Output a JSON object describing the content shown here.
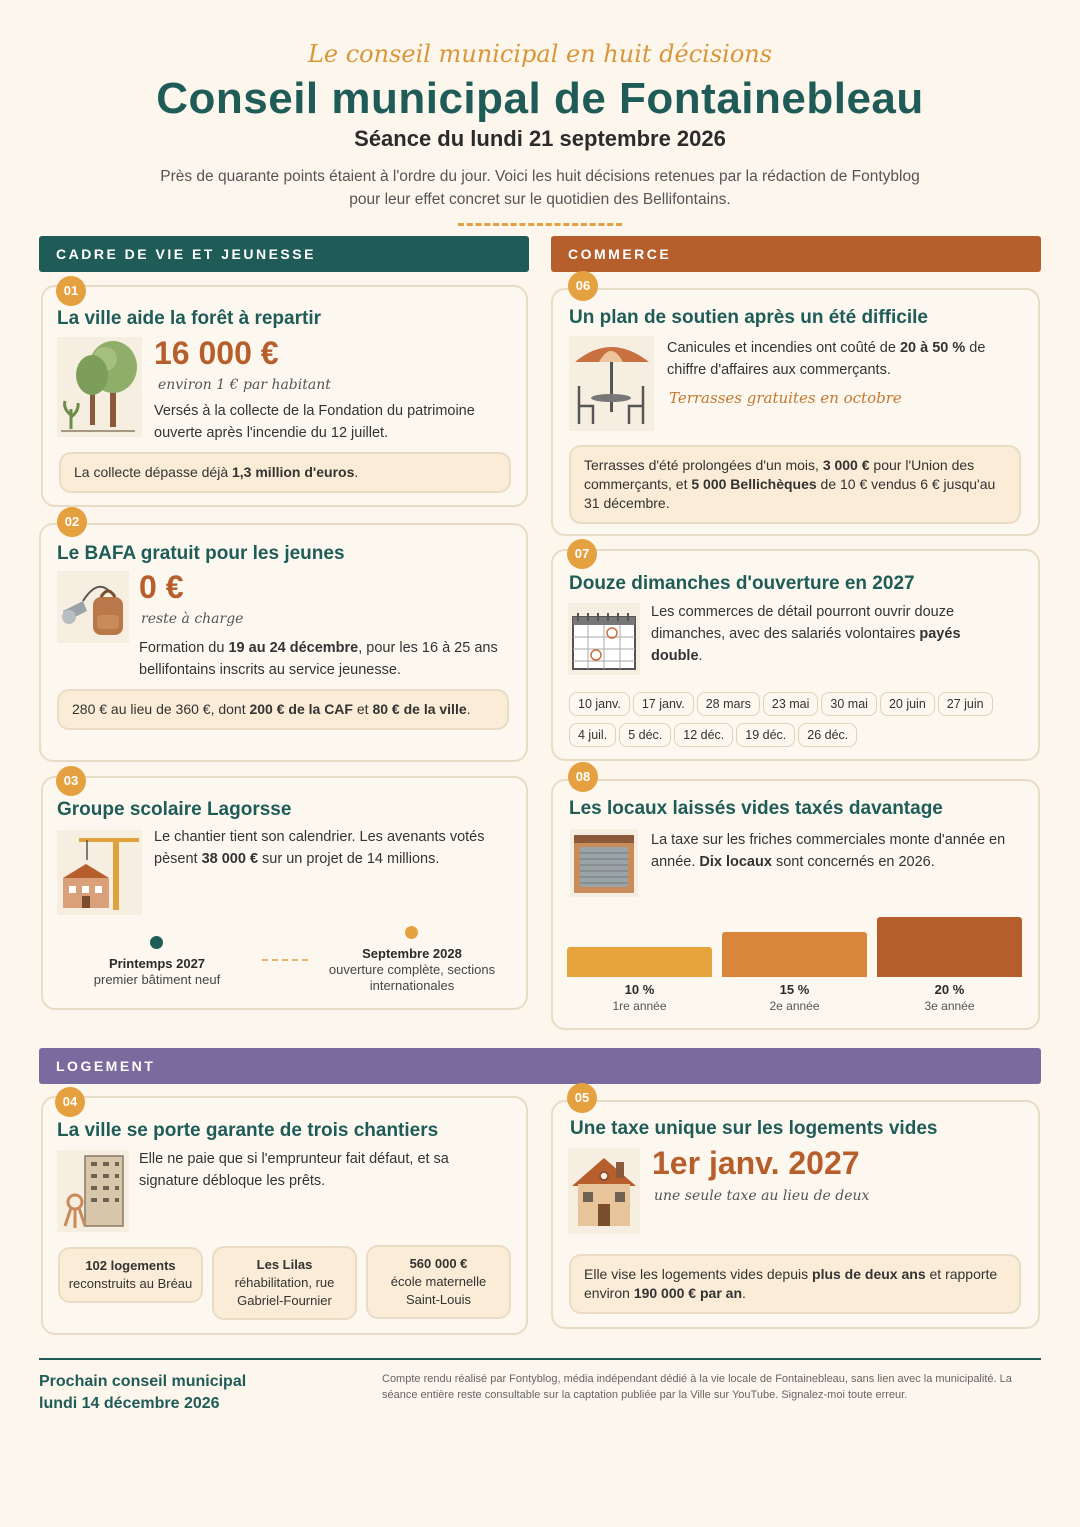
{
  "header": {
    "kicker": "Le conseil municipal en huit décisions",
    "title": "Conseil municipal de Fontainebleau",
    "subtitle": "Séance du lundi 21 septembre 2026",
    "intro": "Près de quarante points étaient à l'ordre du jour. Voici les huit décisions retenues par la rédaction de Fontyblog pour leur effet concret sur le quotidien des Bellifontains."
  },
  "sections": {
    "cadre": {
      "label": "CADRE DE VIE ET JEUNESSE",
      "color": "#1f5c58"
    },
    "commerce": {
      "label": "COMMERCE",
      "color": "#b65f2c"
    },
    "logement": {
      "label": "LOGEMENT",
      "color": "#7b6a9d"
    }
  },
  "cards": {
    "c01": {
      "num": "01",
      "title": "La ville aide la forêt à repartir",
      "illustration": "trees-icon",
      "big": "16 000 €",
      "note": "environ 1 € par habitant",
      "text": "Versés à la collecte de la Fondation du patrimoine ouverte après l'incendie du 12 juillet.",
      "box_pre": "La collecte dépasse déjà ",
      "box_bold": "1,3 million d'euros",
      "box_post": "."
    },
    "c02": {
      "num": "02",
      "title": "Le BAFA gratuit pour les jeunes",
      "illustration": "whistle-backpack-icon",
      "big": "0 €",
      "note": "reste à charge",
      "text_pre": "Formation du ",
      "text_bold": "19 au 24 décembre",
      "text_post": ", pour les 16 à 25 ans bellifontains inscrits au service jeunesse.",
      "box_pre": "280 € au lieu de 360 €, dont ",
      "box_bold1": "200 € de la CAF",
      "box_mid": " et ",
      "box_bold2": "80 € de la ville",
      "box_post": "."
    },
    "c03": {
      "num": "03",
      "title": "Groupe scolaire Lagorsse",
      "illustration": "crane-school-icon",
      "text_pre": "Le chantier tient son calendrier. Les avenants votés pèsent ",
      "text_bold": "38 000 €",
      "text_post": " sur un projet de 14 millions.",
      "timeline": [
        {
          "date": "Printemps 2027",
          "desc": "premier bâtiment neuf",
          "color": "#1f5c58"
        },
        {
          "date": "Septembre 2028",
          "desc": "ouverture complète, sections internationales",
          "color": "#e5a040"
        }
      ]
    },
    "c06": {
      "num": "06",
      "title": "Un plan de soutien après un été difficile",
      "illustration": "terrace-umbrella-icon",
      "text_pre": "Canicules et incendies ont coûté de ",
      "text_bold": "20 à 50 %",
      "text_post": " de chiffre d'affaires aux commerçants.",
      "note": "Terrasses gratuites en octobre",
      "box_pre": "Terrasses d'été prolongées d'un mois, ",
      "box_bold1": "3 000 €",
      "box_mid": " pour l'Union des commerçants, et ",
      "box_bold2": "5 000 Bellichèques",
      "box_post": " de 10 € vendus 6 € jusqu'au 31 décembre."
    },
    "c07": {
      "num": "07",
      "title": "Douze dimanches d'ouverture en 2027",
      "illustration": "calendar-icon",
      "text_pre": "Les commerces de détail pourront ouvrir douze dimanches, avec des salariés volontaires ",
      "text_bold": "payés double",
      "text_post": ".",
      "dates": [
        "10 janv.",
        "17 janv.",
        "28 mars",
        "23 mai",
        "30 mai",
        "20 juin",
        "27 juin",
        "4 juil.",
        "5 déc.",
        "12 déc.",
        "19 déc.",
        "26 déc."
      ]
    },
    "c08": {
      "num": "08",
      "title": "Les locaux laissés vides taxés davantage",
      "illustration": "shop-shutter-icon",
      "text_pre": "La taxe sur les friches commerciales monte d'année en année. ",
      "text_bold": "Dix locaux",
      "text_post": " sont concernés en 2026."
    },
    "c04": {
      "num": "04",
      "title": "La ville se porte garante de trois chantiers",
      "illustration": "keys-building-icon",
      "text": "Elle ne paie que si l'emprunteur fait défaut, et sa signature débloque les prêts.",
      "items": [
        {
          "bold": "102 logements",
          "rest": "reconstruits au Bréau"
        },
        {
          "bold": "Les Lilas",
          "rest": "réhabilitation, rue Gabriel-Fournier"
        },
        {
          "bold": "560 000 €",
          "rest": "école maternelle Saint-Louis"
        }
      ]
    },
    "c05": {
      "num": "05",
      "title": "Une taxe unique sur les logements vides",
      "illustration": "house-icon",
      "big": "1er janv. 2027",
      "note": "une seule taxe au lieu de deux",
      "box_pre": "Elle vise les logements vides depuis ",
      "box_bold1": "plus de deux ans",
      "box_mid": " et rapporte environ ",
      "box_bold2": "190 000 € par an",
      "box_post": "."
    }
  },
  "chart_data": {
    "type": "bar",
    "categories": [
      "1re année",
      "2e année",
      "3e année"
    ],
    "values": [
      10,
      15,
      20
    ],
    "value_labels": [
      "10 %",
      "15 %",
      "20 %"
    ],
    "colors": [
      "#e8a43c",
      "#d9853a",
      "#b65f2c"
    ],
    "title": "",
    "xlabel": "",
    "ylabel": "",
    "ylim": [
      0,
      20
    ]
  },
  "footer": {
    "next_label": "Prochain conseil municipal",
    "next_date": "lundi 14 décembre 2026",
    "credits": "Compte rendu réalisé par Fontyblog, média indépendant dédié à la vie locale de Fontainebleau, sans lien avec la municipalité. La séance entière reste consultable sur la captation publiée par la Ville sur YouTube. Signalez-moi toute erreur."
  }
}
